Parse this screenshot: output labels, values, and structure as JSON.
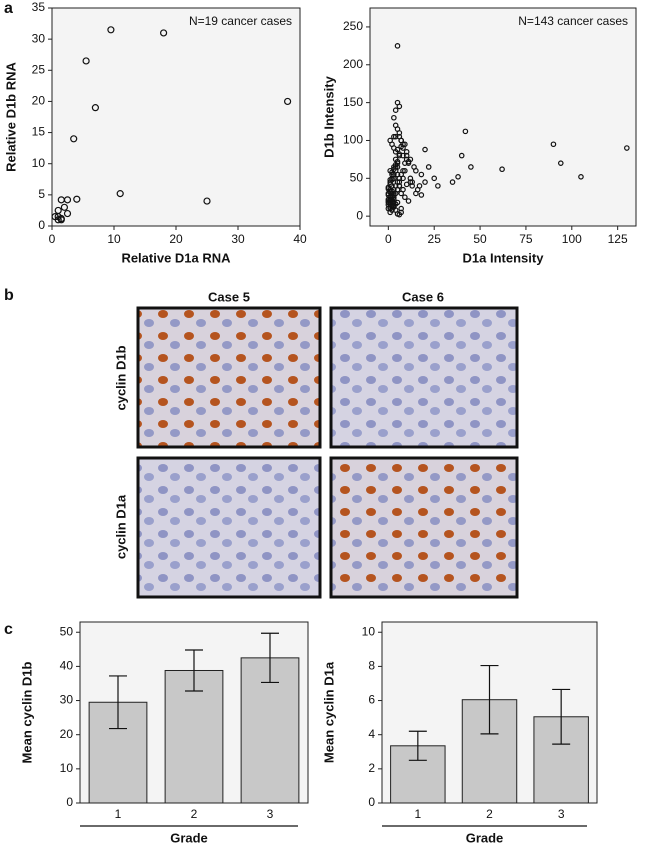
{
  "panel_labels": [
    "a",
    "b",
    "c"
  ],
  "histology": {
    "columns": [
      "Case  5",
      "Case 6"
    ],
    "rows": [
      "cyclin D1b",
      "cyclin D1a"
    ]
  },
  "chart_data": [
    {
      "type": "scatter",
      "annotation": "N=19 cancer cases",
      "x_label": "Relative D1a RNA",
      "y_label": "Relative D1b RNA",
      "x": [
        9.5,
        18,
        5.5,
        7,
        38,
        3.5,
        11,
        25,
        4,
        2.5,
        1.5,
        2,
        2.5,
        1,
        1,
        1.5,
        0.5,
        1,
        1.5
      ],
      "y": [
        31.5,
        31,
        26.5,
        19,
        20,
        14,
        5.2,
        4,
        4.3,
        4.2,
        4.2,
        3,
        2,
        2.5,
        1.5,
        1,
        1.5,
        1,
        1.2
      ],
      "xlim": [
        0,
        40
      ],
      "ylim": [
        0,
        35
      ],
      "xticks": [
        0,
        10,
        20,
        30,
        40
      ],
      "yticks": [
        0,
        5,
        10,
        15,
        20,
        25,
        30,
        35
      ]
    },
    {
      "type": "scatter",
      "annotation": "N=143 cancer cases",
      "x_label": "D1a Intensity",
      "y_label": "D1b Intensity",
      "x": [
        5,
        42,
        90,
        130,
        40,
        45,
        38,
        35,
        62,
        94,
        105,
        25,
        20,
        18,
        22,
        15,
        20,
        27,
        17,
        12,
        14,
        8,
        7,
        10,
        11,
        9,
        6,
        5,
        4,
        3,
        2,
        1,
        0,
        1,
        2,
        3,
        4,
        5,
        6,
        7,
        8,
        9,
        10,
        11,
        12,
        13,
        3,
        2,
        1,
        0,
        1,
        2,
        3,
        4,
        5,
        6,
        7,
        8,
        4,
        3,
        2,
        1,
        0,
        1,
        2,
        3,
        5,
        6,
        7,
        8,
        9,
        10,
        3,
        2,
        1,
        0,
        1,
        2,
        3,
        4,
        5,
        6,
        4,
        3,
        2,
        1,
        0,
        1,
        2,
        3,
        4,
        5,
        6,
        7,
        8,
        2,
        1,
        0,
        1,
        2,
        3,
        4,
        5,
        6,
        3,
        2,
        1,
        0,
        1,
        2,
        3,
        4,
        5,
        6,
        7,
        2,
        1,
        0,
        1,
        2,
        3,
        4,
        5,
        15,
        16,
        18,
        12,
        13,
        11,
        9,
        7,
        6,
        5,
        4,
        8,
        10,
        6,
        5,
        4,
        3,
        2,
        1,
        0
      ],
      "y": [
        225,
        112,
        95,
        90,
        80,
        65,
        52,
        45,
        62,
        70,
        52,
        50,
        45,
        55,
        65,
        60,
        88,
        40,
        40,
        75,
        65,
        90,
        100,
        85,
        70,
        95,
        145,
        150,
        140,
        130,
        20,
        15,
        10,
        25,
        30,
        35,
        40,
        45,
        50,
        55,
        60,
        70,
        80,
        72,
        50,
        45,
        12,
        8,
        5,
        30,
        22,
        18,
        28,
        60,
        65,
        110,
        100,
        95,
        120,
        105,
        40,
        35,
        28,
        12,
        14,
        18,
        115,
        105,
        92,
        80,
        60,
        75,
        30,
        25,
        20,
        18,
        45,
        50,
        55,
        65,
        70,
        80,
        85,
        90,
        95,
        100,
        38,
        32,
        26,
        22,
        8,
        3,
        2,
        10,
        35,
        48,
        42,
        15,
        26,
        33,
        62,
        68,
        72,
        45,
        50,
        55,
        60,
        20,
        18,
        15,
        25,
        30,
        35,
        40,
        5,
        28,
        32,
        36,
        10,
        12,
        14,
        16,
        18,
        30,
        35,
        28,
        45,
        40,
        20,
        25,
        30,
        40,
        55,
        75,
        50,
        42,
        82,
        88,
        105,
        65,
        58,
        48,
        22
      ],
      "xlim": [
        -10,
        135
      ],
      "ylim": [
        -13,
        275
      ],
      "xticks": [
        0,
        25,
        50,
        75,
        100,
        125
      ],
      "yticks": [
        0,
        50,
        100,
        150,
        200,
        250
      ]
    },
    {
      "type": "bar",
      "x_label": "Grade",
      "y_label": "Mean cyclin D1b",
      "categories": [
        "1",
        "2",
        "3"
      ],
      "values": [
        29.5,
        38.8,
        42.5
      ],
      "errors": [
        7.7,
        6,
        7.2
      ],
      "color": "#c8c8c8",
      "ylim": [
        0,
        53
      ],
      "yticks": [
        0,
        10,
        20,
        30,
        40,
        50
      ]
    },
    {
      "type": "bar",
      "x_label": "Grade",
      "y_label": "Mean cyclin D1a",
      "categories": [
        "1",
        "2",
        "3"
      ],
      "values": [
        3.35,
        6.05,
        5.05
      ],
      "errors": [
        0.85,
        2,
        1.6
      ],
      "color": "#c8c8c8",
      "ylim": [
        0,
        10.6
      ],
      "yticks": [
        0,
        2,
        4,
        6,
        8,
        10
      ]
    }
  ]
}
